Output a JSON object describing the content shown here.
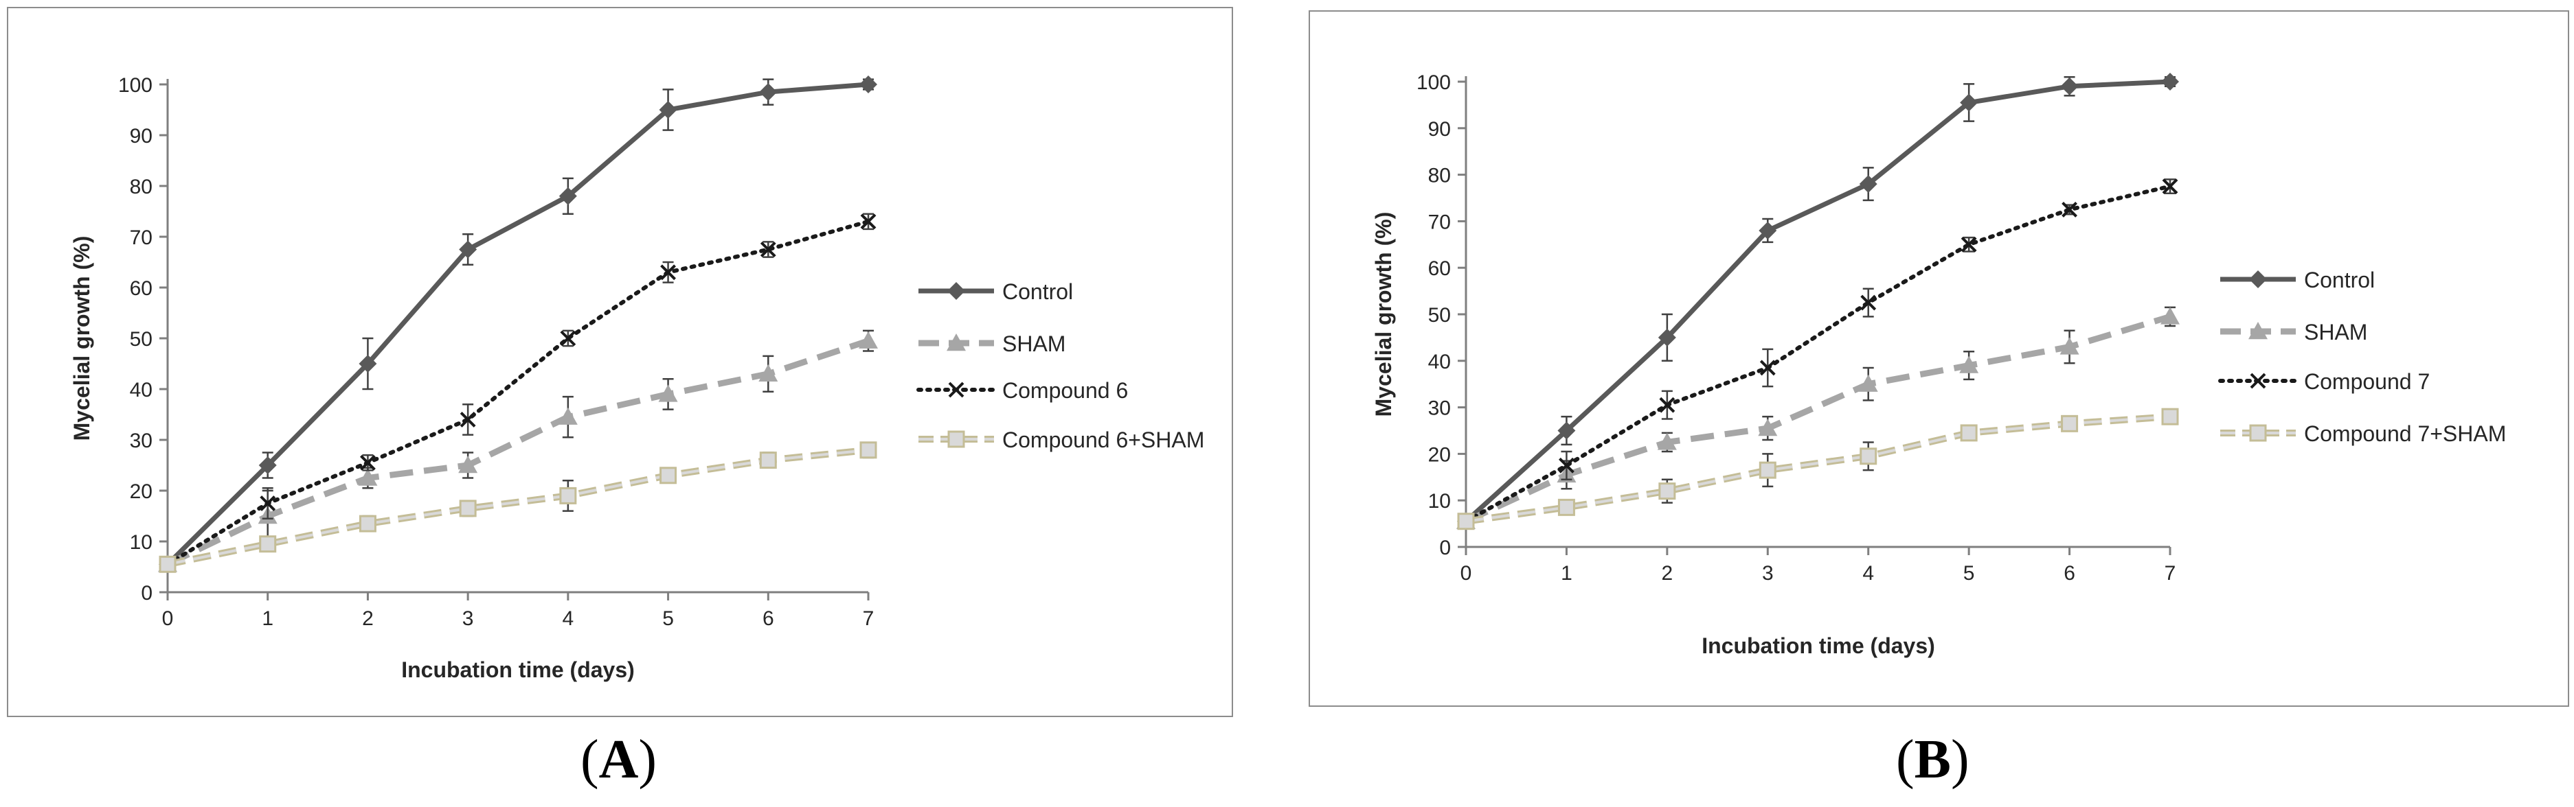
{
  "colors": {
    "control": "#595959",
    "sham": "#a6a6a6",
    "compound": "#1a1a1a",
    "combo_fill": "#d9d9d9",
    "combo_stroke": "#c4bd97",
    "axis": "#7f7f7f"
  },
  "captions": {
    "a_open": "(",
    "a_letter": "A",
    "a_close": ")",
    "b_open": "(",
    "b_letter": "B",
    "b_close": ")"
  },
  "chart_data": [
    {
      "id": "A",
      "type": "line",
      "xlabel": "Incubation time (days)",
      "ylabel": "Mycelial growth (%)",
      "xlim": [
        0,
        7
      ],
      "ylim": [
        0,
        100
      ],
      "x_ticks": [
        0,
        1,
        2,
        3,
        4,
        5,
        6,
        7
      ],
      "y_ticks": [
        0,
        10,
        20,
        30,
        40,
        50,
        60,
        70,
        80,
        90,
        100
      ],
      "x": [
        0,
        1,
        2,
        3,
        4,
        5,
        6,
        7
      ],
      "legend_position": "right",
      "series": [
        {
          "name": "Control",
          "values": [
            5.5,
            25,
            45,
            67.5,
            78,
            95,
            98.5,
            100
          ],
          "errors": [
            1,
            2.5,
            5,
            3,
            3.5,
            4,
            2.5,
            1
          ],
          "style": "solid",
          "marker": "diamond"
        },
        {
          "name": "SHAM",
          "values": [
            5.5,
            15,
            22.5,
            25,
            34.5,
            39,
            43,
            49.5
          ],
          "errors": [
            1,
            5,
            2,
            2.5,
            4,
            3,
            3.5,
            2
          ],
          "style": "dash",
          "marker": "triangle"
        },
        {
          "name": "Compound 6",
          "values": [
            5.5,
            17.5,
            25.5,
            34,
            50,
            63,
            67.5,
            73
          ],
          "errors": [
            1,
            3,
            1.5,
            3,
            1.5,
            2,
            1.5,
            1.5
          ],
          "style": "dot",
          "marker": "x"
        },
        {
          "name": "Compound 6+SHAM",
          "values": [
            5.5,
            9.5,
            13.5,
            16.5,
            19,
            23,
            26,
            28
          ],
          "errors": [
            1,
            1,
            1.5,
            1.5,
            3,
            1,
            1.5,
            1.5
          ],
          "style": "dash-outline",
          "marker": "square"
        }
      ]
    },
    {
      "id": "B",
      "type": "line",
      "xlabel": "Incubation time (days)",
      "ylabel": "Mycelial growth (%)",
      "xlim": [
        0,
        7
      ],
      "ylim": [
        0,
        100
      ],
      "x_ticks": [
        0,
        1,
        2,
        3,
        4,
        5,
        6,
        7
      ],
      "y_ticks": [
        0,
        10,
        20,
        30,
        40,
        50,
        60,
        70,
        80,
        90,
        100
      ],
      "x": [
        0,
        1,
        2,
        3,
        4,
        5,
        6,
        7
      ],
      "legend_position": "right",
      "series": [
        {
          "name": "Control",
          "values": [
            5.5,
            25,
            45,
            68,
            78,
            95.5,
            99,
            100
          ],
          "errors": [
            1,
            3,
            5,
            2.5,
            3.5,
            4,
            2,
            1
          ],
          "style": "solid",
          "marker": "diamond"
        },
        {
          "name": "SHAM",
          "values": [
            5.5,
            15.5,
            22.5,
            25.5,
            35,
            39,
            43,
            49.5
          ],
          "errors": [
            1,
            3,
            2,
            2.5,
            3.5,
            3,
            3.5,
            2
          ],
          "style": "dash",
          "marker": "triangle"
        },
        {
          "name": "Compound 7",
          "values": [
            5.5,
            17.5,
            30.5,
            38.5,
            52.5,
            65,
            72.5,
            77.5
          ],
          "errors": [
            1,
            3,
            3,
            4,
            3,
            1.5,
            1,
            1.5
          ],
          "style": "dot",
          "marker": "x"
        },
        {
          "name": "Compound 7+SHAM",
          "values": [
            5.5,
            8.5,
            12,
            16.5,
            19.5,
            24.5,
            26.5,
            28
          ],
          "errors": [
            1,
            1,
            2.5,
            3.5,
            3,
            1.5,
            1.5,
            1.5
          ],
          "style": "dash-outline",
          "marker": "square"
        }
      ]
    }
  ]
}
